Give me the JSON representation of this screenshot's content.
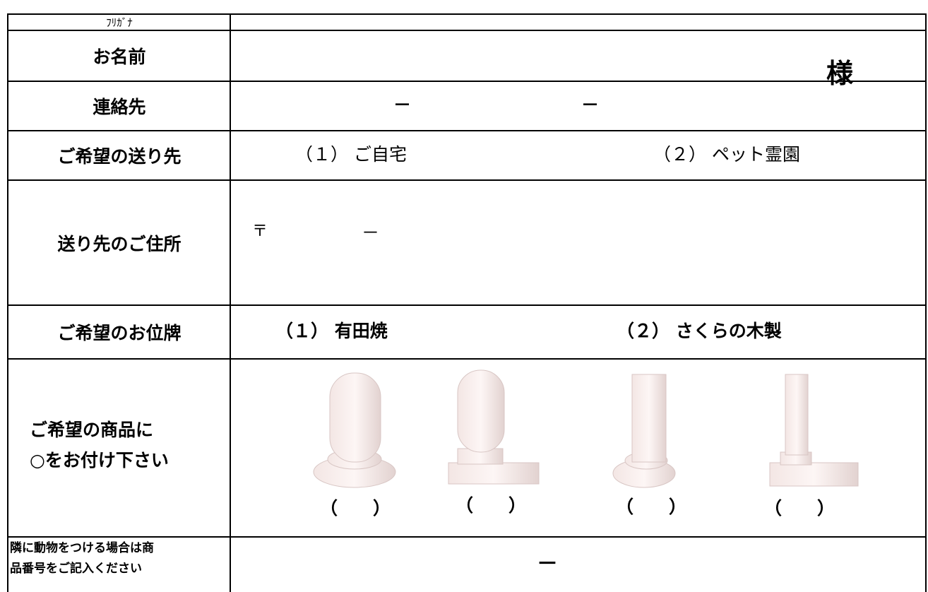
{
  "form": {
    "rows": [
      {
        "label": "ﾌﾘｶﾞﾅ"
      },
      {
        "label": "お名前",
        "suffix": "様"
      },
      {
        "label": "連絡先",
        "separators": [
          "－",
          "－"
        ]
      },
      {
        "label": "ご希望の送り先",
        "options": [
          "（１） ご自宅",
          "（２） ペット霊園"
        ]
      },
      {
        "label": "送り先のご住所",
        "postal_mark": "〒",
        "postal_separator": "－"
      },
      {
        "label": "ご希望のお位牌",
        "options": [
          "（１） 有田焼",
          "（２） さくらの木製"
        ]
      },
      {
        "label_lines": [
          "ご希望の商品に",
          "○をお付け下さい"
        ],
        "choices": [
          "（　　）",
          "（　　）",
          "（　　）",
          "（　　）"
        ]
      },
      {
        "label_lines": [
          "隣に動物をつける場合は商",
          "品番号をご記入ください"
        ],
        "separator": "－"
      }
    ]
  }
}
